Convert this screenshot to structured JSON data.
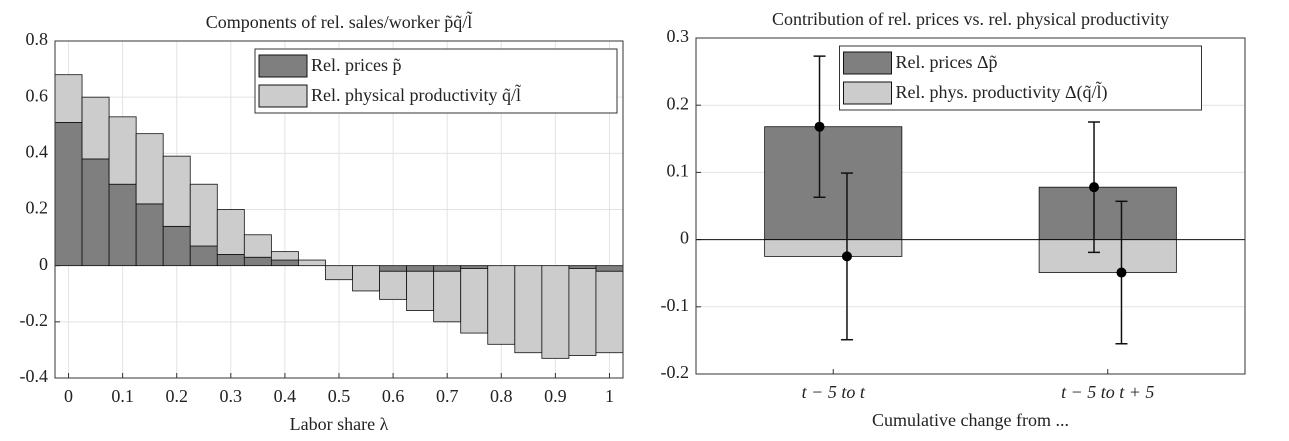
{
  "chart_data": [
    {
      "type": "bar",
      "stacked": true,
      "title": "Components of rel. sales/worker p̃q̃/l̃",
      "xlabel": "Labor share λ",
      "x": [
        0,
        0.05,
        0.1,
        0.15,
        0.2,
        0.25,
        0.3,
        0.35,
        0.4,
        0.45,
        0.5,
        0.55,
        0.6,
        0.65,
        0.7,
        0.75,
        0.8,
        0.85,
        0.9,
        0.95,
        1
      ],
      "series": [
        {
          "name": "Rel. prices p̃",
          "color": "#7f7f7f",
          "values": [
            0.51,
            0.38,
            0.29,
            0.22,
            0.14,
            0.07,
            0.04,
            0.03,
            0.02,
            0,
            0,
            0,
            -0.02,
            -0.02,
            -0.02,
            -0.01,
            0,
            0,
            0,
            -0.01,
            -0.02
          ]
        },
        {
          "name": "Rel. physical productivity q̃/l̃",
          "color": "#cccccc",
          "values": [
            0.17,
            0.22,
            0.24,
            0.25,
            0.25,
            0.22,
            0.16,
            0.08,
            0.03,
            0.02,
            -0.05,
            -0.09,
            -0.1,
            -0.14,
            -0.18,
            -0.23,
            -0.28,
            -0.31,
            -0.33,
            -0.31,
            -0.29
          ]
        }
      ],
      "xlim": [
        -0.025,
        1.025
      ],
      "xticks": [
        0,
        0.1,
        0.2,
        0.3,
        0.4,
        0.5,
        0.6,
        0.7,
        0.8,
        0.9,
        1
      ],
      "ylim": [
        -0.4,
        0.8
      ],
      "yticks": [
        -0.4,
        -0.2,
        0,
        0.2,
        0.4,
        0.6,
        0.8
      ],
      "grid": true,
      "legend": "northeast"
    },
    {
      "type": "bar",
      "stacked": true,
      "title": "Contribution of rel. prices vs. rel. physical productivity",
      "xlabel": "Cumulative change from ...",
      "categories": [
        "t − 5  to  t",
        "t − 5  to  t + 5"
      ],
      "series": [
        {
          "name": "Rel. prices Δp̃",
          "color": "#7f7f7f",
          "values": [
            0.168,
            0.078
          ],
          "errors": [
            0.105,
            0.097
          ]
        },
        {
          "name": "Rel. phys. productivity Δ(q̃/l̃)",
          "color": "#cccccc",
          "values": [
            -0.025,
            -0.049
          ],
          "errors": [
            0.124,
            0.106
          ]
        }
      ],
      "ylim": [
        -0.2,
        0.3
      ],
      "yticks": [
        -0.2,
        -0.1,
        0,
        0.1,
        0.2,
        0.3
      ],
      "grid": true,
      "zero_line": true,
      "legend": "north"
    }
  ]
}
